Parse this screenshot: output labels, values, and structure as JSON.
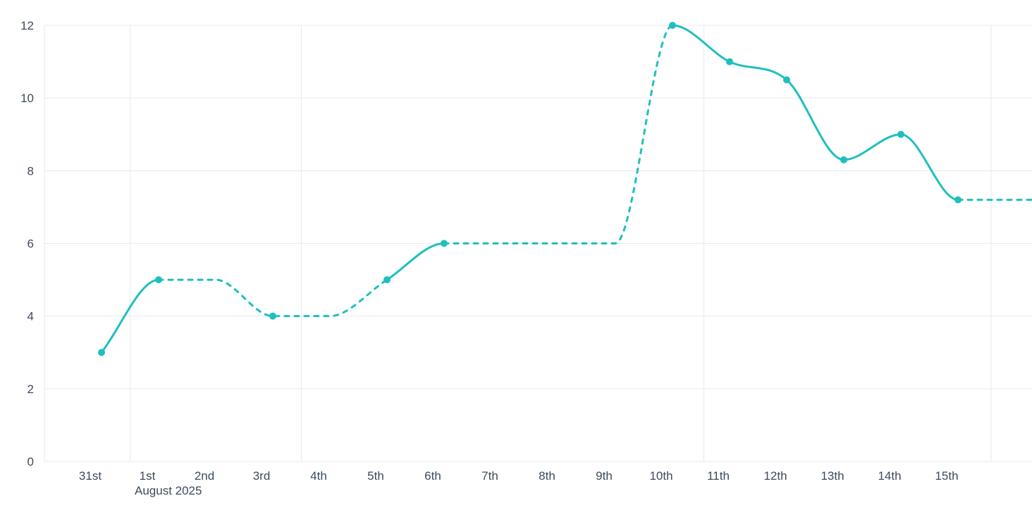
{
  "chart_data": {
    "type": "line",
    "title": "",
    "x_axis_month_label": "August 2025",
    "x_tick_labels": [
      "31st",
      "1st",
      "2nd",
      "3rd",
      "4th",
      "5th",
      "6th",
      "7th",
      "8th",
      "9th",
      "10th",
      "11th",
      "12th",
      "13th",
      "14th",
      "15th"
    ],
    "y_ticks": [
      0,
      2,
      4,
      6,
      8,
      10,
      12
    ],
    "ylim": [
      0,
      12
    ],
    "legend": "none",
    "grid": {
      "horizontal_values": [
        0,
        2,
        4,
        6,
        8,
        10,
        12
      ],
      "vertical_positions": [
        0.5,
        3.5,
        10.55,
        15.58
      ],
      "color": "#e8eaee"
    },
    "series": [
      {
        "color": "#1fbfbf",
        "x": [
          0,
          1,
          2,
          3,
          4,
          5,
          6,
          7,
          8,
          9,
          10,
          11,
          12,
          13,
          14,
          15,
          16.3
        ],
        "values": [
          3,
          5,
          5,
          4,
          4,
          5,
          6,
          6,
          6,
          6,
          12,
          11,
          10.5,
          8.3,
          9,
          7.2,
          7.2
        ],
        "markers": [
          true,
          true,
          false,
          true,
          false,
          true,
          true,
          false,
          false,
          false,
          true,
          true,
          true,
          true,
          true,
          true,
          false
        ],
        "segment_styles": [
          "solid",
          "dashed",
          "dashed",
          "dashed",
          "dashed",
          "solid",
          "dashed",
          "dashed",
          "dashed",
          "dashed",
          "solid",
          "solid",
          "solid",
          "solid",
          "solid",
          "dashed"
        ]
      }
    ],
    "axis_label_color": "#3d4a5c",
    "axis_font_size": 17
  }
}
